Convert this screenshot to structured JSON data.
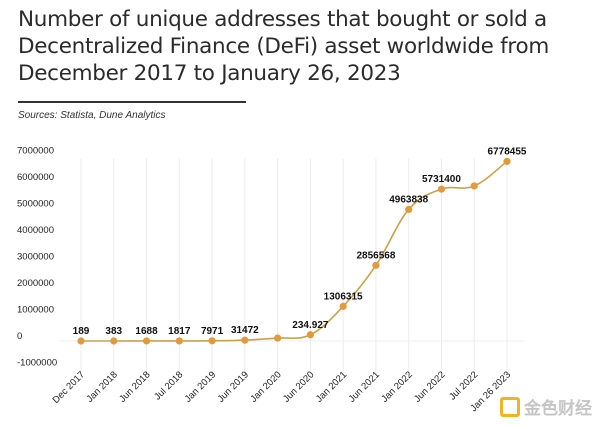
{
  "chart_data": {
    "type": "line",
    "title": "Number of unique addresses that bought or sold a Decentralized Finance (DeFi) asset worldwide from December 2017 to January 26, 2023",
    "source": "Sources: Statista, Dune Analytics",
    "xlabel": "",
    "ylabel": "",
    "categories": [
      "Dec 2017",
      "Jan 2018",
      "Jun 2018",
      "Jul 2018",
      "Jan 2019",
      "Jun 2019",
      "Jan 2020",
      "Jun 2020",
      "Jan 2021",
      "Jun 2021",
      "Jan 2022",
      "Jun 2022",
      "Jul 2022",
      "Jan 26 2023"
    ],
    "values": [
      189,
      383,
      1688,
      1817,
      7971,
      31472,
      110000,
      234927,
      1306315,
      2856568,
      4963838,
      5731400,
      5850000,
      6778455
    ],
    "data_labels": [
      "189",
      "383",
      "1688",
      "1817",
      "7971",
      "31472",
      "",
      "234.927",
      "1306315",
      "2856568",
      "4963838",
      "5731400",
      "",
      "6778455"
    ],
    "yticks": [
      -1000000,
      0,
      1000000,
      2000000,
      3000000,
      4000000,
      5000000,
      6000000,
      7000000
    ],
    "ytick_labels": [
      "-1000000",
      "0",
      "1000000",
      "2000000",
      "3000000",
      "4000000",
      "5000000",
      "6000000",
      "7000000"
    ],
    "ylim": [
      -1000000,
      7000000
    ],
    "grid": "vertical",
    "line_color": "#c9a14a",
    "marker_color": "#e39a3b"
  },
  "watermark": "金色财经"
}
